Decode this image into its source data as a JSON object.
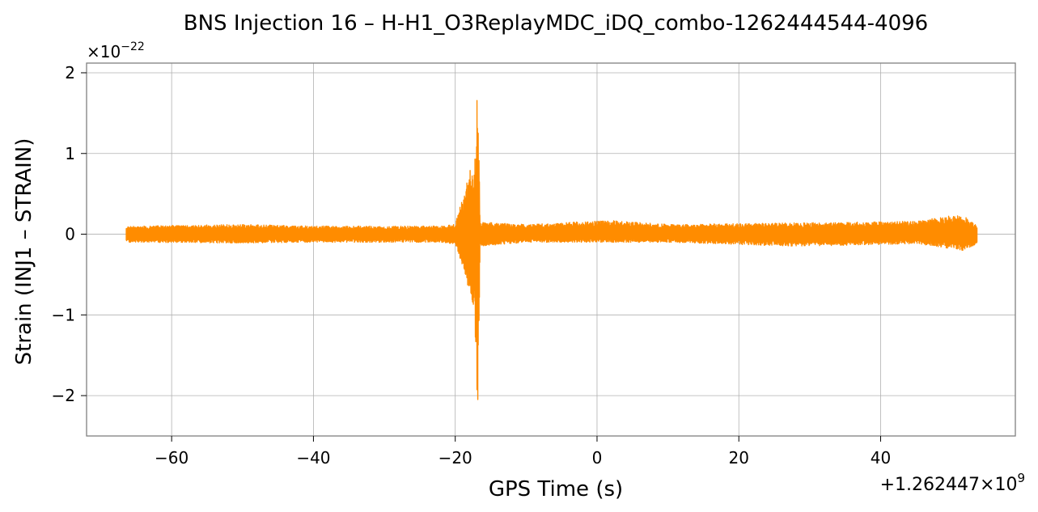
{
  "chart_data": {
    "type": "line",
    "title": "BNS Injection 16 – H-H1_O3ReplayMDC_iDQ_combo-1262444544-4096",
    "xlabel": "GPS Time (s)",
    "ylabel": "Strain (INJ1 – STRAIN)",
    "x_offset_text": "+1.262447×10",
    "x_offset_exp": "9",
    "y_scale_text": "×10",
    "y_scale_exp": "−22",
    "xlim": [
      -72,
      59
    ],
    "ylim": [
      -2.5,
      2.12
    ],
    "x_ticks": [
      -60,
      -40,
      -20,
      0,
      20,
      40
    ],
    "x_tick_labels": [
      "−60",
      "−40",
      "−20",
      "0",
      "20",
      "40"
    ],
    "y_ticks": [
      2,
      1,
      0,
      -1,
      -2
    ],
    "y_tick_labels": [
      "2",
      "1",
      "0",
      "−1",
      "−2"
    ],
    "grid": true,
    "series": [
      {
        "color": "#ff8c00",
        "x_range": [
          -66.4,
          53.6
        ],
        "noise_amplitude": 0.1,
        "envelope": [
          {
            "x": -66.4,
            "lo": -0.1,
            "hi": 0.1
          },
          {
            "x": -50,
            "lo": -0.11,
            "hi": 0.12
          },
          {
            "x": -40,
            "lo": -0.1,
            "hi": 0.1
          },
          {
            "x": -22,
            "lo": -0.1,
            "hi": 0.1
          },
          {
            "x": -20,
            "lo": -0.12,
            "hi": 0.13
          },
          {
            "x": -18.5,
            "lo": -0.55,
            "hi": 0.6
          },
          {
            "x": -17.3,
            "lo": -0.95,
            "hi": 1.0
          },
          {
            "x": -16.8,
            "lo": -2.3,
            "hi": 1.92
          },
          {
            "x": -16.5,
            "lo": -0.15,
            "hi": 0.15
          },
          {
            "x": -10,
            "lo": -0.1,
            "hi": 0.12
          },
          {
            "x": 2,
            "lo": -0.1,
            "hi": 0.17
          },
          {
            "x": 10,
            "lo": -0.1,
            "hi": 0.12
          },
          {
            "x": 28,
            "lo": -0.15,
            "hi": 0.14
          },
          {
            "x": 45,
            "lo": -0.12,
            "hi": 0.16
          },
          {
            "x": 51.6,
            "lo": -0.2,
            "hi": 0.25
          },
          {
            "x": 53.6,
            "lo": -0.12,
            "hi": 0.1
          }
        ]
      }
    ]
  }
}
